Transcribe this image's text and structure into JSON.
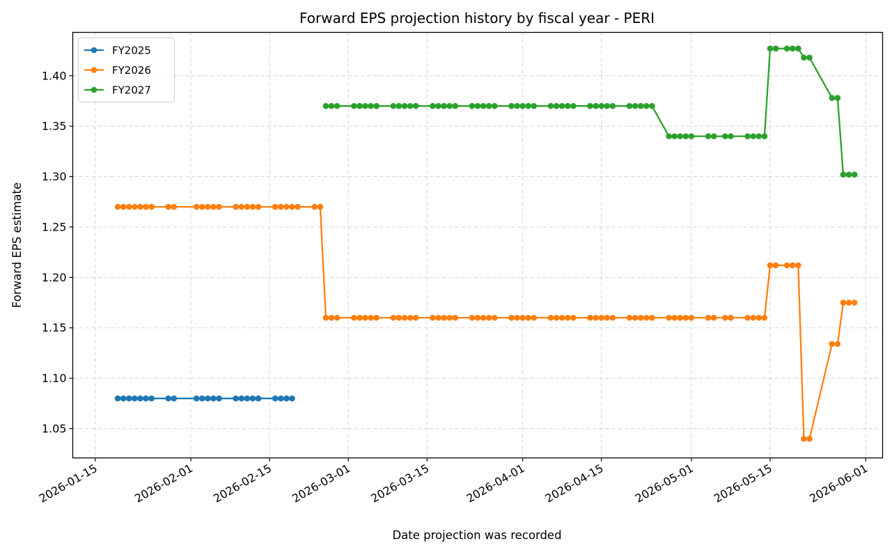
{
  "chart_data": {
    "type": "line",
    "title": "Forward EPS projection history by fiscal year - PERI",
    "xlabel": "Date projection was recorded",
    "ylabel": "Forward EPS estimate",
    "x_is_date": true,
    "xlim": [
      "2026-01-11",
      "2026-06-04"
    ],
    "ylim": [
      1.021,
      1.443
    ],
    "grid": true,
    "legend_position": "top-left",
    "x_ticks": [
      "2026-01-15",
      "2026-02-01",
      "2026-02-15",
      "2026-03-01",
      "2026-03-15",
      "2026-04-01",
      "2026-04-15",
      "2026-05-01",
      "2026-05-15",
      "2026-06-01"
    ],
    "y_ticks": [
      1.05,
      1.1,
      1.15,
      1.2,
      1.25,
      1.3,
      1.35,
      1.4
    ],
    "y_tick_labels": [
      "1.05",
      "1.10",
      "1.15",
      "1.20",
      "1.25",
      "1.30",
      "1.35",
      "1.40"
    ],
    "series": [
      {
        "name": "FY2025",
        "color": "#1f77b4",
        "points": [
          [
            "2026-01-19",
            1.08
          ],
          [
            "2026-01-20",
            1.08
          ],
          [
            "2026-01-21",
            1.08
          ],
          [
            "2026-01-22",
            1.08
          ],
          [
            "2026-01-23",
            1.08
          ],
          [
            "2026-01-24",
            1.08
          ],
          [
            "2026-01-25",
            1.08
          ],
          [
            "2026-01-28",
            1.08
          ],
          [
            "2026-01-29",
            1.08
          ],
          [
            "2026-02-02",
            1.08
          ],
          [
            "2026-02-03",
            1.08
          ],
          [
            "2026-02-04",
            1.08
          ],
          [
            "2026-02-05",
            1.08
          ],
          [
            "2026-02-06",
            1.08
          ],
          [
            "2026-02-09",
            1.08
          ],
          [
            "2026-02-10",
            1.08
          ],
          [
            "2026-02-11",
            1.08
          ],
          [
            "2026-02-12",
            1.08
          ],
          [
            "2026-02-13",
            1.08
          ],
          [
            "2026-02-16",
            1.08
          ],
          [
            "2026-02-17",
            1.08
          ],
          [
            "2026-02-18",
            1.08
          ],
          [
            "2026-02-19",
            1.08
          ]
        ]
      },
      {
        "name": "FY2026",
        "color": "#ff7f0e",
        "points": [
          [
            "2026-01-19",
            1.27
          ],
          [
            "2026-01-20",
            1.27
          ],
          [
            "2026-01-21",
            1.27
          ],
          [
            "2026-01-22",
            1.27
          ],
          [
            "2026-01-23",
            1.27
          ],
          [
            "2026-01-24",
            1.27
          ],
          [
            "2026-01-25",
            1.27
          ],
          [
            "2026-01-28",
            1.27
          ],
          [
            "2026-01-29",
            1.27
          ],
          [
            "2026-02-02",
            1.27
          ],
          [
            "2026-02-03",
            1.27
          ],
          [
            "2026-02-04",
            1.27
          ],
          [
            "2026-02-05",
            1.27
          ],
          [
            "2026-02-06",
            1.27
          ],
          [
            "2026-02-09",
            1.27
          ],
          [
            "2026-02-10",
            1.27
          ],
          [
            "2026-02-11",
            1.27
          ],
          [
            "2026-02-12",
            1.27
          ],
          [
            "2026-02-13",
            1.27
          ],
          [
            "2026-02-16",
            1.27
          ],
          [
            "2026-02-17",
            1.27
          ],
          [
            "2026-02-18",
            1.27
          ],
          [
            "2026-02-19",
            1.27
          ],
          [
            "2026-02-20",
            1.27
          ],
          [
            "2026-02-23",
            1.27
          ],
          [
            "2026-02-24",
            1.27
          ],
          [
            "2026-02-25",
            1.16
          ],
          [
            "2026-02-26",
            1.16
          ],
          [
            "2026-02-27",
            1.16
          ],
          [
            "2026-03-02",
            1.16
          ],
          [
            "2026-03-03",
            1.16
          ],
          [
            "2026-03-04",
            1.16
          ],
          [
            "2026-03-05",
            1.16
          ],
          [
            "2026-03-06",
            1.16
          ],
          [
            "2026-03-09",
            1.16
          ],
          [
            "2026-03-10",
            1.16
          ],
          [
            "2026-03-11",
            1.16
          ],
          [
            "2026-03-12",
            1.16
          ],
          [
            "2026-03-13",
            1.16
          ],
          [
            "2026-03-16",
            1.16
          ],
          [
            "2026-03-17",
            1.16
          ],
          [
            "2026-03-18",
            1.16
          ],
          [
            "2026-03-19",
            1.16
          ],
          [
            "2026-03-20",
            1.16
          ],
          [
            "2026-03-23",
            1.16
          ],
          [
            "2026-03-24",
            1.16
          ],
          [
            "2026-03-25",
            1.16
          ],
          [
            "2026-03-26",
            1.16
          ],
          [
            "2026-03-27",
            1.16
          ],
          [
            "2026-03-30",
            1.16
          ],
          [
            "2026-03-31",
            1.16
          ],
          [
            "2026-04-01",
            1.16
          ],
          [
            "2026-04-02",
            1.16
          ],
          [
            "2026-04-03",
            1.16
          ],
          [
            "2026-04-06",
            1.16
          ],
          [
            "2026-04-07",
            1.16
          ],
          [
            "2026-04-08",
            1.16
          ],
          [
            "2026-04-09",
            1.16
          ],
          [
            "2026-04-10",
            1.16
          ],
          [
            "2026-04-13",
            1.16
          ],
          [
            "2026-04-14",
            1.16
          ],
          [
            "2026-04-15",
            1.16
          ],
          [
            "2026-04-16",
            1.16
          ],
          [
            "2026-04-17",
            1.16
          ],
          [
            "2026-04-20",
            1.16
          ],
          [
            "2026-04-21",
            1.16
          ],
          [
            "2026-04-22",
            1.16
          ],
          [
            "2026-04-23",
            1.16
          ],
          [
            "2026-04-24",
            1.16
          ],
          [
            "2026-04-27",
            1.16
          ],
          [
            "2026-04-28",
            1.16
          ],
          [
            "2026-04-29",
            1.16
          ],
          [
            "2026-04-30",
            1.16
          ],
          [
            "2026-05-01",
            1.16
          ],
          [
            "2026-05-04",
            1.16
          ],
          [
            "2026-05-05",
            1.16
          ],
          [
            "2026-05-07",
            1.16
          ],
          [
            "2026-05-08",
            1.16
          ],
          [
            "2026-05-11",
            1.16
          ],
          [
            "2026-05-12",
            1.16
          ],
          [
            "2026-05-13",
            1.16
          ],
          [
            "2026-05-14",
            1.16
          ],
          [
            "2026-05-15",
            1.212
          ],
          [
            "2026-05-16",
            1.212
          ],
          [
            "2026-05-18",
            1.212
          ],
          [
            "2026-05-19",
            1.212
          ],
          [
            "2026-05-20",
            1.212
          ],
          [
            "2026-05-21",
            1.04
          ],
          [
            "2026-05-22",
            1.04
          ],
          [
            "2026-05-26",
            1.134
          ],
          [
            "2026-05-27",
            1.134
          ],
          [
            "2026-05-28",
            1.175
          ],
          [
            "2026-05-29",
            1.175
          ],
          [
            "2026-05-30",
            1.175
          ]
        ]
      },
      {
        "name": "FY2027",
        "color": "#2ca02c",
        "points": [
          [
            "2026-02-25",
            1.37
          ],
          [
            "2026-02-26",
            1.37
          ],
          [
            "2026-02-27",
            1.37
          ],
          [
            "2026-03-02",
            1.37
          ],
          [
            "2026-03-03",
            1.37
          ],
          [
            "2026-03-04",
            1.37
          ],
          [
            "2026-03-05",
            1.37
          ],
          [
            "2026-03-06",
            1.37
          ],
          [
            "2026-03-09",
            1.37
          ],
          [
            "2026-03-10",
            1.37
          ],
          [
            "2026-03-11",
            1.37
          ],
          [
            "2026-03-12",
            1.37
          ],
          [
            "2026-03-13",
            1.37
          ],
          [
            "2026-03-16",
            1.37
          ],
          [
            "2026-03-17",
            1.37
          ],
          [
            "2026-03-18",
            1.37
          ],
          [
            "2026-03-19",
            1.37
          ],
          [
            "2026-03-20",
            1.37
          ],
          [
            "2026-03-23",
            1.37
          ],
          [
            "2026-03-24",
            1.37
          ],
          [
            "2026-03-25",
            1.37
          ],
          [
            "2026-03-26",
            1.37
          ],
          [
            "2026-03-27",
            1.37
          ],
          [
            "2026-03-30",
            1.37
          ],
          [
            "2026-03-31",
            1.37
          ],
          [
            "2026-04-01",
            1.37
          ],
          [
            "2026-04-02",
            1.37
          ],
          [
            "2026-04-03",
            1.37
          ],
          [
            "2026-04-06",
            1.37
          ],
          [
            "2026-04-07",
            1.37
          ],
          [
            "2026-04-08",
            1.37
          ],
          [
            "2026-04-09",
            1.37
          ],
          [
            "2026-04-10",
            1.37
          ],
          [
            "2026-04-13",
            1.37
          ],
          [
            "2026-04-14",
            1.37
          ],
          [
            "2026-04-15",
            1.37
          ],
          [
            "2026-04-16",
            1.37
          ],
          [
            "2026-04-17",
            1.37
          ],
          [
            "2026-04-20",
            1.37
          ],
          [
            "2026-04-21",
            1.37
          ],
          [
            "2026-04-22",
            1.37
          ],
          [
            "2026-04-23",
            1.37
          ],
          [
            "2026-04-24",
            1.37
          ],
          [
            "2026-04-27",
            1.34
          ],
          [
            "2026-04-28",
            1.34
          ],
          [
            "2026-04-29",
            1.34
          ],
          [
            "2026-04-30",
            1.34
          ],
          [
            "2026-05-01",
            1.34
          ],
          [
            "2026-05-04",
            1.34
          ],
          [
            "2026-05-05",
            1.34
          ],
          [
            "2026-05-07",
            1.34
          ],
          [
            "2026-05-08",
            1.34
          ],
          [
            "2026-05-11",
            1.34
          ],
          [
            "2026-05-12",
            1.34
          ],
          [
            "2026-05-13",
            1.34
          ],
          [
            "2026-05-14",
            1.34
          ],
          [
            "2026-05-15",
            1.427
          ],
          [
            "2026-05-16",
            1.427
          ],
          [
            "2026-05-18",
            1.427
          ],
          [
            "2026-05-19",
            1.427
          ],
          [
            "2026-05-20",
            1.427
          ],
          [
            "2026-05-21",
            1.418
          ],
          [
            "2026-05-22",
            1.418
          ],
          [
            "2026-05-26",
            1.378
          ],
          [
            "2026-05-27",
            1.378
          ],
          [
            "2026-05-28",
            1.302
          ],
          [
            "2026-05-29",
            1.302
          ],
          [
            "2026-05-30",
            1.302
          ]
        ]
      }
    ]
  }
}
